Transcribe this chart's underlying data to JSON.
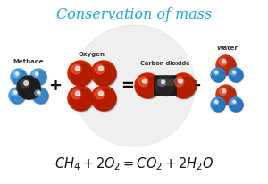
{
  "title": "Conservation of mass",
  "title_color": "#1aa8d4",
  "title_fontsize": 11.5,
  "bg_color": "#ffffff",
  "label_methane": "Methane",
  "label_oxygen": "Oxygen",
  "label_carbon_dioxide": "Carbon dioxide",
  "label_water": "Water",
  "colors": {
    "carbon_dark": "#222222",
    "carbon_mid": "#555555",
    "hydrogen_blue": "#4499e0",
    "hydrogen_blue_hi": "#88ccff",
    "oxygen_red": "#cc2200",
    "oxygen_red_hi": "#ff6644",
    "carbon_co2_dark": "#111111",
    "carbon_co2_mid": "#555555",
    "water_blue": "#3388dd",
    "water_blue_hi": "#77bbff",
    "water_red": "#cc3311",
    "water_red_hi": "#ff7755"
  },
  "watermark_color": "#dddddd",
  "operator_color": "#111111",
  "label_color": "#333333",
  "eq_color": "#111111"
}
